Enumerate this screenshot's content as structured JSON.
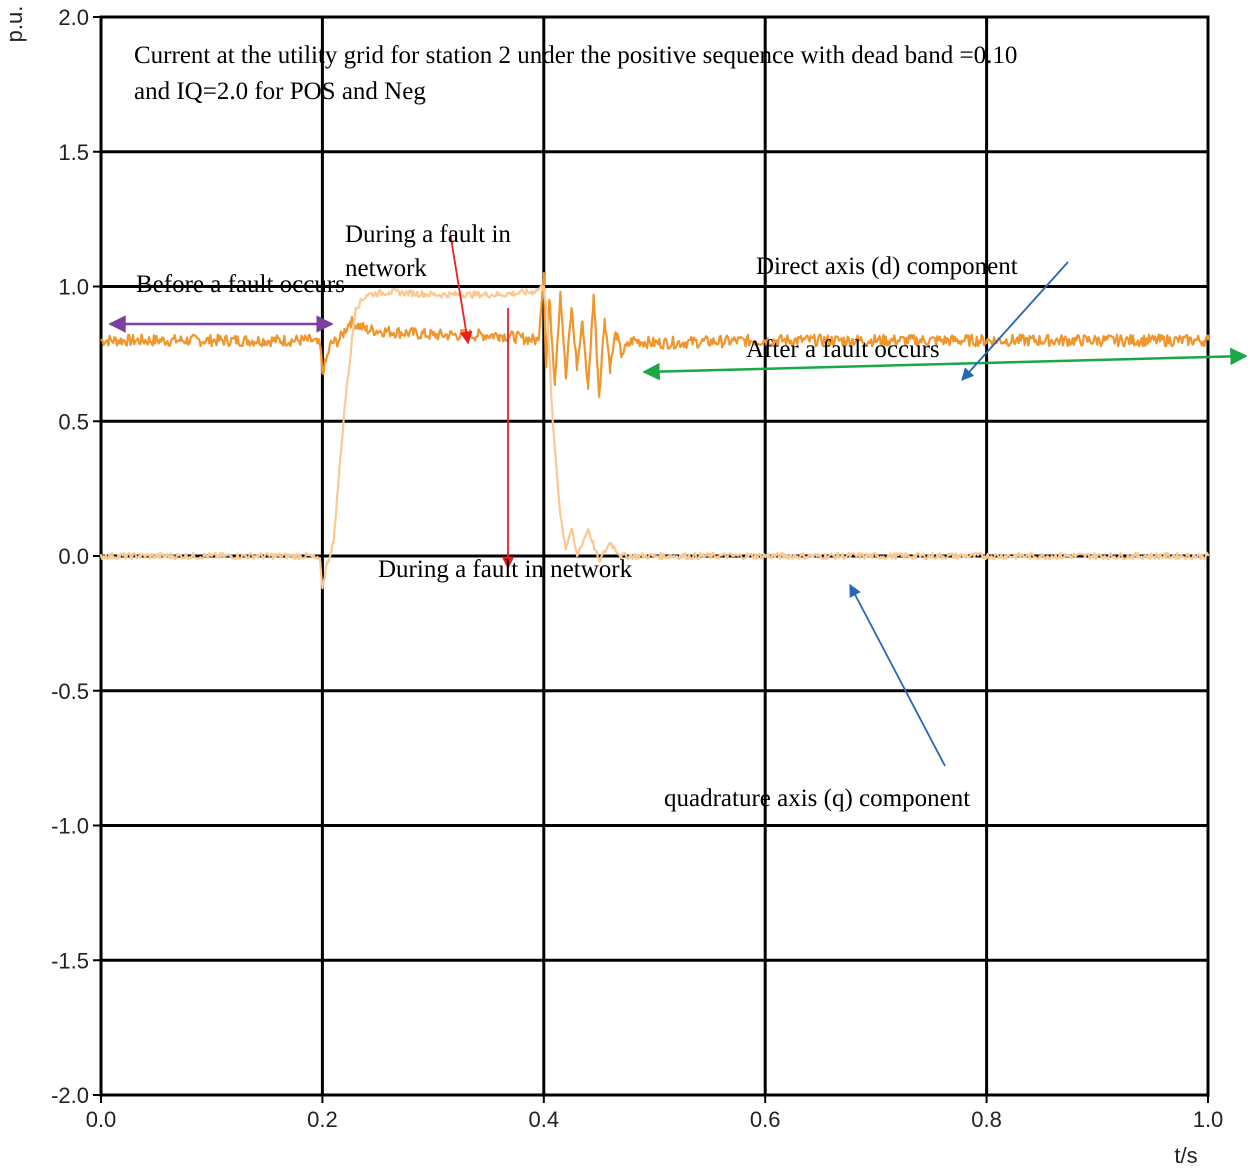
{
  "chart_data": {
    "type": "line",
    "title_lines": [
      "Current  at the utility grid for station 2 under the positive sequence with dead band =0.10",
      "and IQ=2.0 for POS and Neg"
    ],
    "xlabel": "t/s",
    "ylabel": "p.u.",
    "xlim": [
      0.0,
      1.0
    ],
    "ylim": [
      -2.0,
      2.0
    ],
    "x_ticks": [
      "0.0",
      "0.2",
      "0.4",
      "0.6",
      "0.8",
      "1.0"
    ],
    "y_ticks": [
      "2.0",
      "1.5",
      "1.0",
      "0.5",
      "0.0",
      "-0.5",
      "-1.0",
      "-1.5",
      "-2.0"
    ],
    "grid": true,
    "series": [
      {
        "color": "#F0962E",
        "x": [
          0.0,
          0.1,
          0.19,
          0.198,
          0.2,
          0.203,
          0.208,
          0.215,
          0.225,
          0.24,
          0.3,
          0.36,
          0.395,
          0.4,
          0.402,
          0.405,
          0.41,
          0.415,
          0.42,
          0.425,
          0.43,
          0.435,
          0.44,
          0.445,
          0.45,
          0.455,
          0.46,
          0.465,
          0.47,
          0.48,
          0.5,
          0.6,
          0.7,
          0.8,
          0.9,
          1.0
        ],
        "y": [
          0.8,
          0.8,
          0.8,
          0.78,
          0.68,
          0.72,
          0.79,
          0.8,
          0.87,
          0.84,
          0.82,
          0.82,
          0.8,
          1.05,
          0.7,
          0.95,
          0.65,
          0.98,
          0.66,
          0.92,
          0.7,
          0.87,
          0.62,
          0.97,
          0.6,
          0.88,
          0.7,
          0.83,
          0.75,
          0.8,
          0.79,
          0.8,
          0.8,
          0.8,
          0.8,
          0.8
        ]
      },
      {
        "color": "#FAC993",
        "x": [
          0.0,
          0.1,
          0.19,
          0.198,
          0.2,
          0.203,
          0.21,
          0.22,
          0.23,
          0.24,
          0.26,
          0.3,
          0.36,
          0.39,
          0.4,
          0.403,
          0.408,
          0.415,
          0.42,
          0.425,
          0.43,
          0.44,
          0.45,
          0.46,
          0.47,
          0.5,
          0.6,
          0.7,
          0.8,
          0.9,
          1.0
        ],
        "y": [
          0.0,
          0.0,
          0.0,
          -0.02,
          -0.12,
          -0.05,
          0.05,
          0.55,
          0.92,
          0.97,
          0.98,
          0.97,
          0.97,
          0.98,
          1.0,
          0.9,
          0.5,
          0.15,
          0.03,
          0.1,
          0.0,
          0.1,
          -0.02,
          0.05,
          0.0,
          0.0,
          0.0,
          0.0,
          0.0,
          0.0,
          0.0
        ]
      }
    ],
    "annotations": {
      "before": "Before a fault occurs",
      "during_top_1": "During  a  fault  in",
      "during_top_2": "network",
      "direct": "Direct axis (d) component",
      "after": "After a fault occurs",
      "during_bottom": "During a fault in network",
      "quad": "quadrature axis (q) component"
    },
    "arrow_colors": {
      "before": "#7B3FA0",
      "during": "#EE1C25",
      "after": "#19A845",
      "component": "#2667B7"
    }
  }
}
